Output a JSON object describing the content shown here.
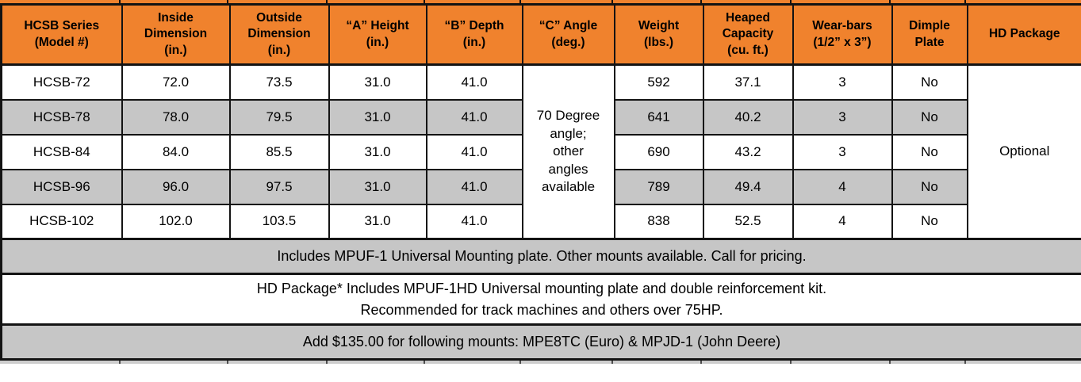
{
  "colors": {
    "accent": "#F0822D",
    "zebra": "#C6C6C6",
    "line": "#131313"
  },
  "table": {
    "headers": [
      "HCSB Series\n(Model #)",
      "Inside\nDimension\n(in.)",
      "Outside\nDimension\n(in.)",
      "“A” Height\n(in.)",
      "“B” Depth\n(in.)",
      "“C” Angle\n(deg.)",
      "Weight\n(lbs.)",
      "Heaped\nCapacity\n(cu. ft.)",
      "Wear-bars\n(1/2” x 3”)",
      "Dimple\nPlate",
      "HD Package"
    ],
    "rows": [
      {
        "model": "HCSB-72",
        "inside": "72.0",
        "outside": "73.5",
        "a_height": "31.0",
        "b_depth": "41.0",
        "weight": "592",
        "capacity": "37.1",
        "wear_bars": "3",
        "dimple": "No"
      },
      {
        "model": "HCSB-78",
        "inside": "78.0",
        "outside": "79.5",
        "a_height": "31.0",
        "b_depth": "41.0",
        "weight": "641",
        "capacity": "40.2",
        "wear_bars": "3",
        "dimple": "No"
      },
      {
        "model": "HCSB-84",
        "inside": "84.0",
        "outside": "85.5",
        "a_height": "31.0",
        "b_depth": "41.0",
        "weight": "690",
        "capacity": "43.2",
        "wear_bars": "3",
        "dimple": "No"
      },
      {
        "model": "HCSB-96",
        "inside": "96.0",
        "outside": "97.5",
        "a_height": "31.0",
        "b_depth": "41.0",
        "weight": "789",
        "capacity": "49.4",
        "wear_bars": "4",
        "dimple": "No"
      },
      {
        "model": "HCSB-102",
        "inside": "102.0",
        "outside": "103.5",
        "a_height": "31.0",
        "b_depth": "41.0",
        "weight": "838",
        "capacity": "52.5",
        "wear_bars": "4",
        "dimple": "No"
      }
    ],
    "merged": {
      "c_angle": "70 Degree\nangle;\nother\nangles\navailable",
      "hd_package": "Optional"
    },
    "footers": [
      "Includes MPUF-1 Universal Mounting plate. Other mounts available. Call for pricing.",
      "HD Package* Includes MPUF-1HD Universal mounting plate and double reinforcement kit.\nRecommended for track machines and others over 75HP.",
      "Add $135.00 for following mounts: MPE8TC (Euro) & MPJD-1 (John Deere)"
    ]
  }
}
